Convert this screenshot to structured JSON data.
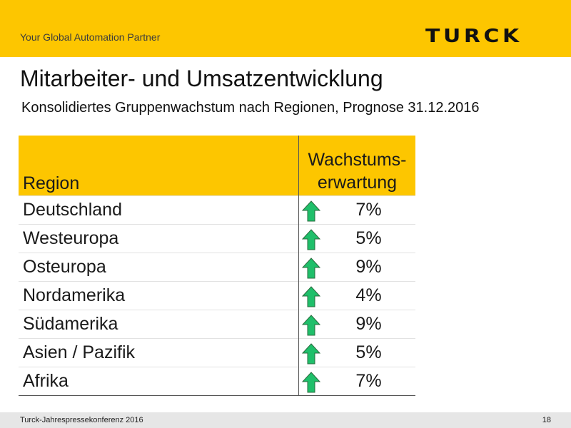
{
  "header": {
    "tagline": "Your Global Automation Partner",
    "logo_text": "TURCK",
    "background_color": "#fdc600"
  },
  "title": "Mitarbeiter- und Umsatzentwicklung",
  "subtitle": "Konsolidiertes Gruppenwachstum nach Regionen, Prognose 31.12.2016",
  "table": {
    "headers": {
      "region": "Region",
      "growth_line1": "Wachstums-",
      "growth_line2": "erwartung"
    },
    "rows": [
      {
        "region": "Deutschland",
        "growth": "7%",
        "trend_icon": "green-up-arrow-icon"
      },
      {
        "region": "Westeuropa",
        "growth": "5%",
        "trend_icon": "green-up-arrow-icon"
      },
      {
        "region": "Osteuropa",
        "growth": "9%",
        "trend_icon": "green-up-arrow-icon"
      },
      {
        "region": "Nordamerika",
        "growth": "4%",
        "trend_icon": "green-up-arrow-icon"
      },
      {
        "region": "Südamerika",
        "growth": "9%",
        "trend_icon": "green-up-arrow-icon"
      },
      {
        "region": "Asien / Pazifik",
        "growth": "5%",
        "trend_icon": "green-up-arrow-icon"
      },
      {
        "region": "Afrika",
        "growth": "7%",
        "trend_icon": "green-up-arrow-icon"
      }
    ],
    "arrow_color": "#1fbf6a"
  },
  "footer": {
    "left": "Turck-Jahrespressekonferenz 2016",
    "page_number": "18"
  }
}
